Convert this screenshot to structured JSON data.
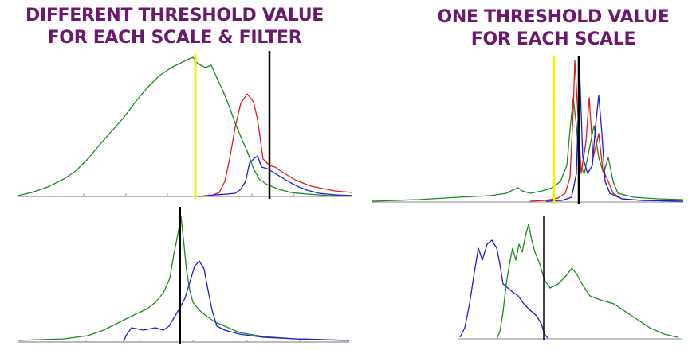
{
  "titles": {
    "left": [
      "DIFFERENT THRESHOLD VALUE",
      "FOR EACH SCALE & FILTER"
    ],
    "right": [
      "ONE THRESHOLD VALUE",
      "FOR EACH SCALE"
    ]
  },
  "colors": {
    "title": "#6b1a6b",
    "green": "#1a8a1a",
    "red": "#e01a1a",
    "blue": "#1a1ae0",
    "threshold_black": "#000000",
    "threshold_yellow": "#f2f200"
  }
}
